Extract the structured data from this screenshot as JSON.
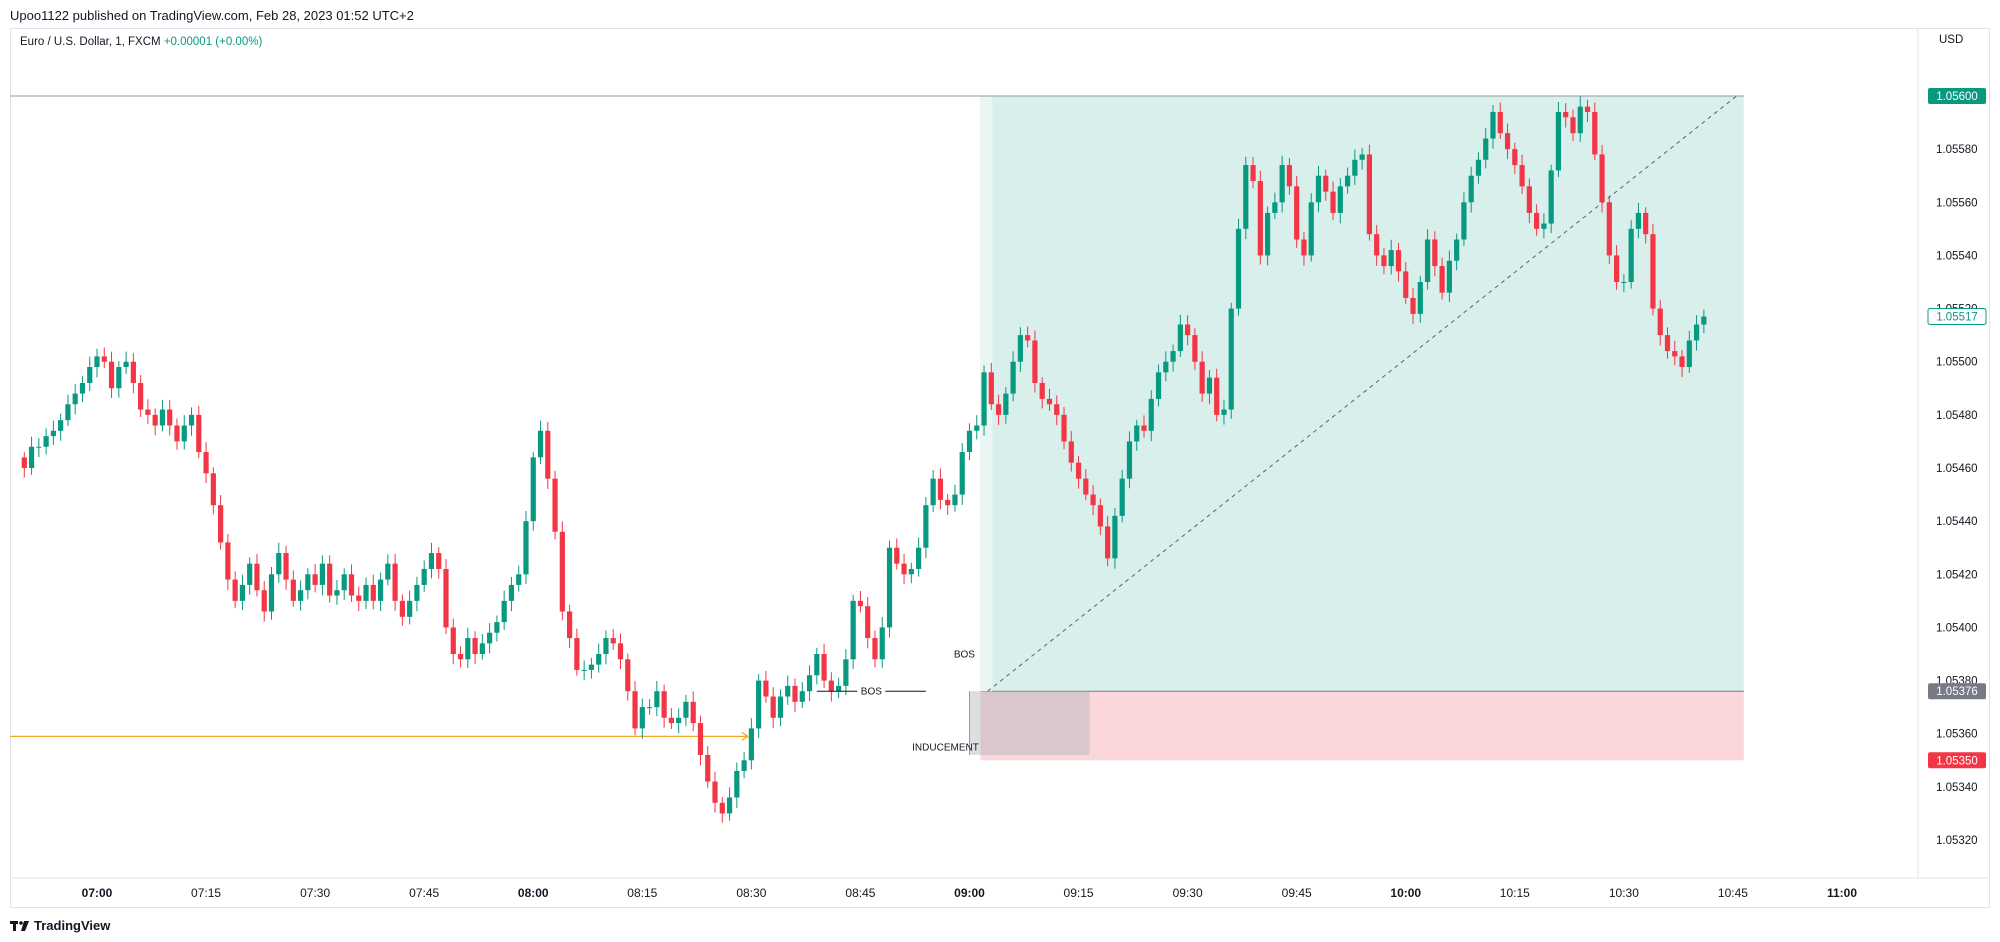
{
  "header": {
    "published": "Upoo1122 published on TradingView.com, Feb 28, 2023 01:52 UTC+2"
  },
  "legend": {
    "symbol": "Euro / U.S. Dollar, 1, FXCM",
    "change": "+0.00001 (+0.00%)"
  },
  "axis": {
    "currency": "USD"
  },
  "footer": {
    "brand": "TradingView"
  },
  "colors": {
    "up": "#089981",
    "down": "#f23645",
    "profit_zone": "#d9efec",
    "loss_zone": "#fbd6da",
    "grey_zone": "#b2b5be",
    "arrow": "#f5a623",
    "entry_badge": "#787b86"
  },
  "chart_data": {
    "type": "candlestick",
    "instrument": "Euro / U.S. Dollar, 1, FXCM",
    "ylim": [
      1.0531,
      1.0562
    ],
    "y_ticks": [
      1.0532,
      1.0534,
      1.0536,
      1.0538,
      1.054,
      1.0542,
      1.0544,
      1.0546,
      1.0548,
      1.055,
      1.0552,
      1.0554,
      1.0556,
      1.0558,
      1.056
    ],
    "y_tick_labels": [
      "1.05320",
      "1.05340",
      "1.05360",
      "1.05380",
      "1.05400",
      "1.05420",
      "1.05440",
      "1.05460",
      "1.05480",
      "1.05500",
      "1.05520",
      "1.05540",
      "1.05560",
      "1.05580",
      "1.05600"
    ],
    "x_ticks": [
      {
        "label": "07:00",
        "min": 420,
        "bold": true
      },
      {
        "label": "07:15",
        "min": 435,
        "bold": false
      },
      {
        "label": "07:30",
        "min": 450,
        "bold": false
      },
      {
        "label": "07:45",
        "min": 465,
        "bold": false
      },
      {
        "label": "08:00",
        "min": 480,
        "bold": true
      },
      {
        "label": "08:15",
        "min": 495,
        "bold": false
      },
      {
        "label": "08:30",
        "min": 510,
        "bold": false
      },
      {
        "label": "08:45",
        "min": 525,
        "bold": false
      },
      {
        "label": "09:00",
        "min": 540,
        "bold": true
      },
      {
        "label": "09:15",
        "min": 555,
        "bold": false
      },
      {
        "label": "09:30",
        "min": 570,
        "bold": false
      },
      {
        "label": "09:45",
        "min": 585,
        "bold": false
      },
      {
        "label": "10:00",
        "min": 600,
        "bold": true
      },
      {
        "label": "10:15",
        "min": 615,
        "bold": false
      },
      {
        "label": "10:30",
        "min": 630,
        "bold": false
      },
      {
        "label": "10:45",
        "min": 645,
        "bold": false
      },
      {
        "label": "11:00",
        "min": 660,
        "bold": true
      }
    ],
    "start_min": 410,
    "closes": [
      1.0546,
      1.05468,
      1.05468,
      1.05472,
      1.05474,
      1.05478,
      1.05484,
      1.05488,
      1.05492,
      1.05498,
      1.05502,
      1.055,
      1.0549,
      1.05498,
      1.055,
      1.05492,
      1.05482,
      1.0548,
      1.05476,
      1.05482,
      1.05476,
      1.0547,
      1.05476,
      1.0548,
      1.05466,
      1.05458,
      1.05446,
      1.05432,
      1.05418,
      1.0541,
      1.05416,
      1.05424,
      1.05414,
      1.05406,
      1.0542,
      1.05428,
      1.05418,
      1.0541,
      1.05414,
      1.0542,
      1.05416,
      1.05424,
      1.05412,
      1.05414,
      1.0542,
      1.05412,
      1.0541,
      1.05416,
      1.0541,
      1.05418,
      1.05424,
      1.0541,
      1.05404,
      1.0541,
      1.05416,
      1.05422,
      1.05428,
      1.05422,
      1.054,
      1.0539,
      1.05388,
      1.05396,
      1.0539,
      1.05394,
      1.05398,
      1.05402,
      1.0541,
      1.05416,
      1.0542,
      1.0544,
      1.05464,
      1.05474,
      1.05456,
      1.05436,
      1.05406,
      1.05396,
      1.05384,
      1.05384,
      1.05386,
      1.0539,
      1.05396,
      1.05394,
      1.05388,
      1.05376,
      1.05362,
      1.0537,
      1.0537,
      1.05376,
      1.05366,
      1.05364,
      1.05366,
      1.05372,
      1.05364,
      1.05352,
      1.05342,
      1.05334,
      1.0533,
      1.05336,
      1.05346,
      1.0535,
      1.05362,
      1.0538,
      1.05374,
      1.05366,
      1.05374,
      1.05378,
      1.05372,
      1.05376,
      1.05382,
      1.0539,
      1.0538,
      1.05376,
      1.05378,
      1.05388,
      1.0541,
      1.05408,
      1.05396,
      1.05388,
      1.054,
      1.0543,
      1.05424,
      1.0542,
      1.05422,
      1.0543,
      1.05446,
      1.05456,
      1.05448,
      1.05446,
      1.0545,
      1.05466,
      1.05474,
      1.05476,
      1.05496,
      1.05484,
      1.0548,
      1.05488,
      1.055,
      1.0551,
      1.05508,
      1.05492,
      1.05486,
      1.05484,
      1.0548,
      1.0547,
      1.05462,
      1.05456,
      1.0545,
      1.05446,
      1.05438,
      1.05426,
      1.05442,
      1.05456,
      1.0547,
      1.05476,
      1.05474,
      1.05486,
      1.05496,
      1.055,
      1.05504,
      1.05514,
      1.0551,
      1.055,
      1.05488,
      1.05494,
      1.0548,
      1.05482,
      1.0552,
      1.0555,
      1.05574,
      1.05568,
      1.0554,
      1.05556,
      1.0556,
      1.05574,
      1.05566,
      1.05546,
      1.0554,
      1.0556,
      1.0557,
      1.05564,
      1.05556,
      1.05566,
      1.0557,
      1.05576,
      1.05578,
      1.05548,
      1.0554,
      1.05536,
      1.05542,
      1.05534,
      1.05524,
      1.05518,
      1.0553,
      1.05546,
      1.05536,
      1.05526,
      1.05538,
      1.05546,
      1.0556,
      1.0557,
      1.05576,
      1.05584,
      1.05594,
      1.05586,
      1.0558,
      1.05574,
      1.05566,
      1.05556,
      1.0555,
      1.05552,
      1.05572,
      1.05594,
      1.05592,
      1.05586,
      1.05596,
      1.05594,
      1.05578,
      1.0556,
      1.0554,
      1.0553,
      1.0553,
      1.0555,
      1.05556,
      1.05548,
      1.0552,
      1.0551,
      1.05504,
      1.05502,
      1.05498,
      1.05508,
      1.05514,
      1.05517
    ],
    "position": {
      "entry": 1.05376,
      "target": 1.056,
      "stop": 1.0535,
      "start_min": 541.5,
      "end_min": 646.5
    },
    "horizontal_line": 1.056,
    "trend_line": [
      [
        542.5,
        1.05376
      ],
      [
        645.5,
        1.056
      ]
    ],
    "arrow": {
      "from_min": 410,
      "to_min": 509.5,
      "price": 1.05359
    },
    "grey_zone": {
      "from_min": 540,
      "to_min": 545.5,
      "top": 1.05376,
      "bottom": 1.05352
    },
    "annotations": [
      {
        "text": "BOS",
        "min": 526.5,
        "price": 1.05376,
        "line_from": 519,
        "line_to": 534
      },
      {
        "text": "BOS",
        "min": 539.3,
        "price": 1.0539
      },
      {
        "text": "INDUCEMENT",
        "min": 536.7,
        "price": 1.05355
      }
    ],
    "price_labels": [
      {
        "text": "1.05600",
        "price": 1.056,
        "bg": "#089981",
        "fg": "#ffffff"
      },
      {
        "text": "1.05517",
        "price": 1.05517,
        "bg": "#ffffff",
        "fg": "#089981",
        "border": "#089981"
      },
      {
        "text": "1.05376",
        "price": 1.05376,
        "bg": "#787b86",
        "fg": "#ffffff"
      },
      {
        "text": "1.05350",
        "price": 1.0535,
        "bg": "#f23645",
        "fg": "#ffffff"
      }
    ]
  }
}
